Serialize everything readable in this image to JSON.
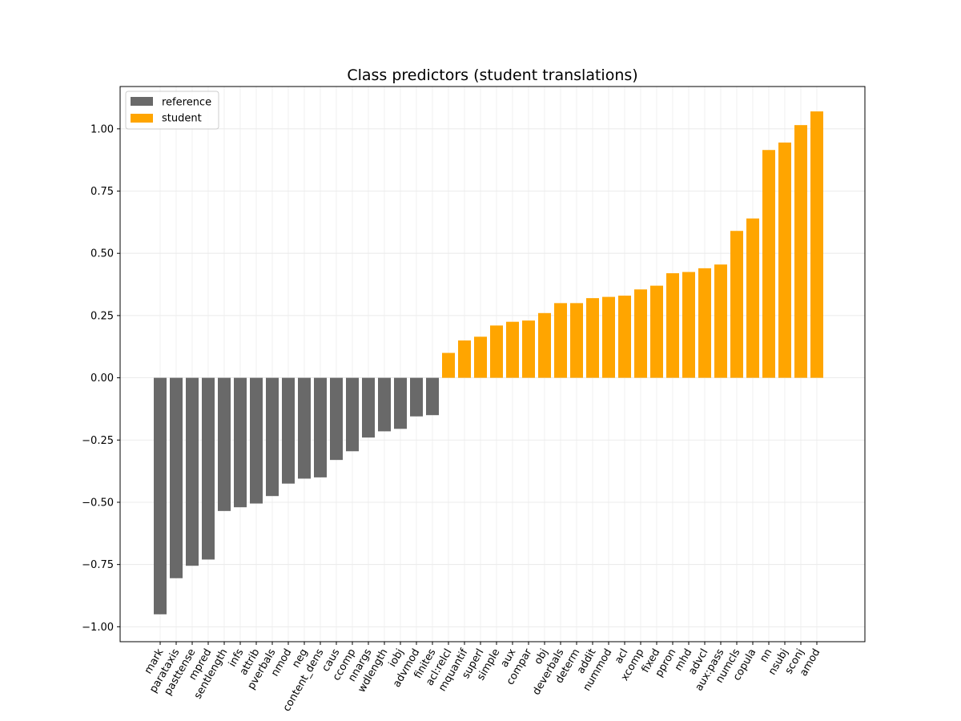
{
  "chart_data": {
    "type": "bar",
    "title": "Class predictors (student translations)",
    "xlabel": "",
    "ylabel": "",
    "ylim": [
      -1.06,
      1.17
    ],
    "yticks": [
      -1.0,
      -0.75,
      -0.5,
      -0.25,
      0.0,
      0.25,
      0.5,
      0.75,
      1.0
    ],
    "ytick_labels": [
      "−1.00",
      "−0.75",
      "−0.50",
      "−0.25",
      "0.00",
      "0.25",
      "0.50",
      "0.75",
      "1.00"
    ],
    "grid": true,
    "legend_position": "top-left",
    "colors": {
      "reference": "#696969",
      "student": "#ffa500"
    },
    "legend": [
      {
        "label": "reference",
        "class": "reference"
      },
      {
        "label": "student",
        "class": "student"
      }
    ],
    "categories": [
      "mark",
      "parataxis",
      "pasttense",
      "mpred",
      "sentlength",
      "infs",
      "attrib",
      "pverbals",
      "nmod",
      "neg",
      "content_dens",
      "caus",
      "ccomp",
      "nnargs",
      "wdlength",
      "iobj",
      "advmod",
      "finites",
      "acl:relcl",
      "mquantif",
      "superl",
      "simple",
      "aux",
      "compar",
      "obj",
      "deverbals",
      "determ",
      "addit",
      "nummod",
      "acl",
      "xcomp",
      "fixed",
      "ppron",
      "mhd",
      "advcl",
      "aux:pass",
      "numcls",
      "copula",
      "nn",
      "nsubj",
      "sconj",
      "amod"
    ],
    "values": [
      -0.95,
      -0.805,
      -0.755,
      -0.73,
      -0.535,
      -0.52,
      -0.505,
      -0.475,
      -0.425,
      -0.405,
      -0.4,
      -0.33,
      -0.295,
      -0.24,
      -0.215,
      -0.205,
      -0.155,
      -0.15,
      0.1,
      0.15,
      0.165,
      0.21,
      0.225,
      0.23,
      0.26,
      0.3,
      0.3,
      0.32,
      0.325,
      0.33,
      0.355,
      0.37,
      0.42,
      0.425,
      0.44,
      0.455,
      0.59,
      0.64,
      0.915,
      0.945,
      1.015,
      1.07
    ],
    "classes": [
      "reference",
      "reference",
      "reference",
      "reference",
      "reference",
      "reference",
      "reference",
      "reference",
      "reference",
      "reference",
      "reference",
      "reference",
      "reference",
      "reference",
      "reference",
      "reference",
      "reference",
      "reference",
      "student",
      "student",
      "student",
      "student",
      "student",
      "student",
      "student",
      "student",
      "student",
      "student",
      "student",
      "student",
      "student",
      "student",
      "student",
      "student",
      "student",
      "student",
      "student",
      "student",
      "student",
      "student",
      "student",
      "student"
    ]
  }
}
